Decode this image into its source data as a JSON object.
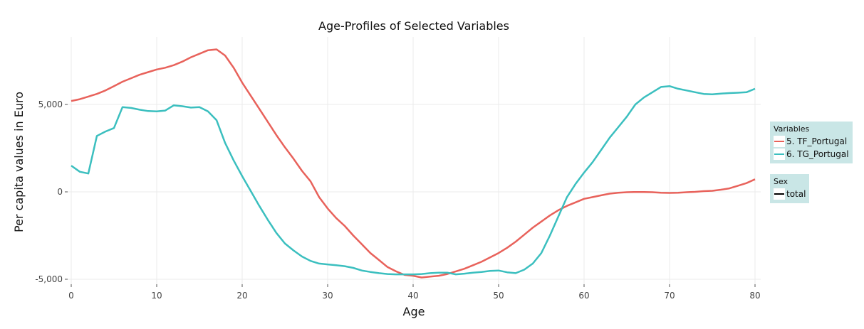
{
  "chart_data": {
    "type": "line",
    "title": "Age-Profiles of Selected Variables",
    "xlabel": "Age",
    "ylabel": "Per capita values in Euro",
    "xlim": [
      0,
      80
    ],
    "ylim": [
      -5000,
      8200
    ],
    "xticks": [
      0,
      10,
      20,
      30,
      40,
      50,
      60,
      70,
      80
    ],
    "yticks": [
      -5000,
      0,
      5000
    ],
    "ytick_labels": [
      "-5,000",
      "0",
      "5,000"
    ],
    "grid": true,
    "legend_position": "right",
    "legends": [
      {
        "title": "Variables",
        "entries": [
          {
            "label": "5. TF_Portugal",
            "color": "#e8625b"
          },
          {
            "label": "6. TG_Portugal",
            "color": "#3bbfbf"
          }
        ]
      },
      {
        "title": "Sex",
        "entries": [
          {
            "label": "total",
            "color": "#000000"
          }
        ]
      }
    ],
    "x": [
      0,
      1,
      2,
      3,
      4,
      5,
      6,
      7,
      8,
      9,
      10,
      11,
      12,
      13,
      14,
      15,
      16,
      17,
      18,
      19,
      20,
      21,
      22,
      23,
      24,
      25,
      26,
      27,
      28,
      29,
      30,
      31,
      32,
      33,
      34,
      35,
      36,
      37,
      38,
      39,
      40,
      41,
      42,
      43,
      44,
      45,
      46,
      47,
      48,
      49,
      50,
      51,
      52,
      53,
      54,
      55,
      56,
      57,
      58,
      59,
      60,
      61,
      62,
      63,
      64,
      65,
      66,
      67,
      68,
      69,
      70,
      71,
      72,
      73,
      74,
      75,
      76,
      77,
      78,
      79,
      80
    ],
    "series": [
      {
        "name": "5. TF_Portugal",
        "color": "#e8625b",
        "values": [
          5200,
          5300,
          5450,
          5600,
          5800,
          6050,
          6300,
          6500,
          6700,
          6850,
          7000,
          7100,
          7250,
          7450,
          7700,
          7900,
          8100,
          8150,
          7800,
          7100,
          6250,
          5500,
          4750,
          4000,
          3250,
          2550,
          1900,
          1200,
          600,
          -300,
          -950,
          -1500,
          -1950,
          -2500,
          -3000,
          -3500,
          -3900,
          -4300,
          -4550,
          -4750,
          -4800,
          -4900,
          -4850,
          -4800,
          -4700,
          -4550,
          -4400,
          -4200,
          -4000,
          -3750,
          -3500,
          -3200,
          -2850,
          -2450,
          -2050,
          -1700,
          -1350,
          -1050,
          -800,
          -600,
          -400,
          -300,
          -200,
          -100,
          -50,
          -20,
          -10,
          -10,
          -20,
          -50,
          -60,
          -50,
          -20,
          0,
          40,
          60,
          120,
          200,
          350,
          500,
          720
        ]
      },
      {
        "name": "6. TG_Portugal",
        "color": "#3bbfbf",
        "values": [
          1500,
          1150,
          1050,
          3200,
          3450,
          3650,
          4850,
          4800,
          4700,
          4620,
          4600,
          4650,
          4950,
          4900,
          4820,
          4850,
          4600,
          4100,
          2800,
          1800,
          900,
          50,
          -800,
          -1600,
          -2350,
          -2950,
          -3350,
          -3700,
          -3950,
          -4100,
          -4150,
          -4200,
          -4250,
          -4350,
          -4500,
          -4580,
          -4650,
          -4700,
          -4720,
          -4720,
          -4720,
          -4700,
          -4650,
          -4620,
          -4620,
          -4720,
          -4680,
          -4620,
          -4580,
          -4520,
          -4500,
          -4600,
          -4650,
          -4450,
          -4100,
          -3500,
          -2500,
          -1400,
          -300,
          450,
          1100,
          1700,
          2400,
          3100,
          3700,
          4300,
          5000,
          5400,
          5700,
          6000,
          6050,
          5900,
          5800,
          5700,
          5600,
          5580,
          5620,
          5650,
          5670,
          5700,
          5900
        ]
      }
    ]
  }
}
